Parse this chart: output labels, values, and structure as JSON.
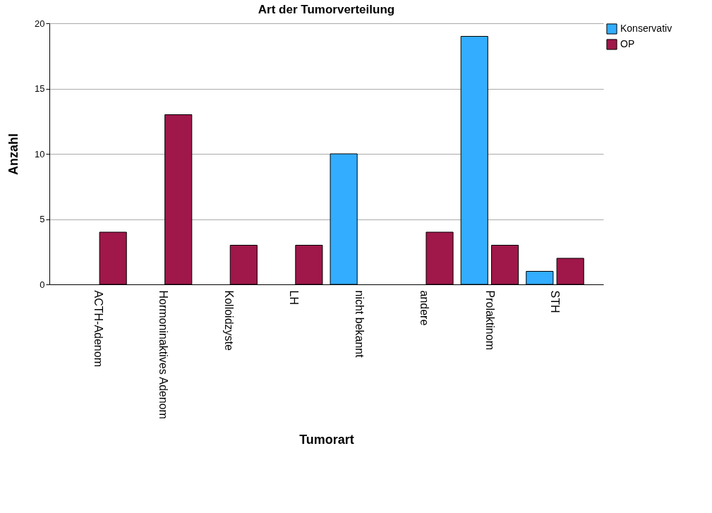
{
  "chart_data": {
    "type": "bar",
    "title": "Art der Tumorverteilung",
    "xlabel": "Tumorart",
    "ylabel": "Anzahl",
    "categories": [
      "ACTH-Adenom",
      "Hormoninaktives Adenom",
      "Kolloidzyste",
      "LH",
      "nicht bekannt",
      "andere",
      "Prolaktinom",
      "STH"
    ],
    "series": [
      {
        "name": "Konservativ",
        "color": "#33adff",
        "values": [
          null,
          null,
          null,
          null,
          10,
          null,
          19,
          1
        ]
      },
      {
        "name": "OP",
        "color": "#a0174a",
        "values": [
          4,
          13,
          3,
          3,
          null,
          4,
          3,
          2
        ]
      }
    ],
    "ylim": [
      0,
      20
    ],
    "yticks": [
      0,
      5,
      10,
      15,
      20
    ],
    "grid": "y",
    "legend": "top right"
  }
}
